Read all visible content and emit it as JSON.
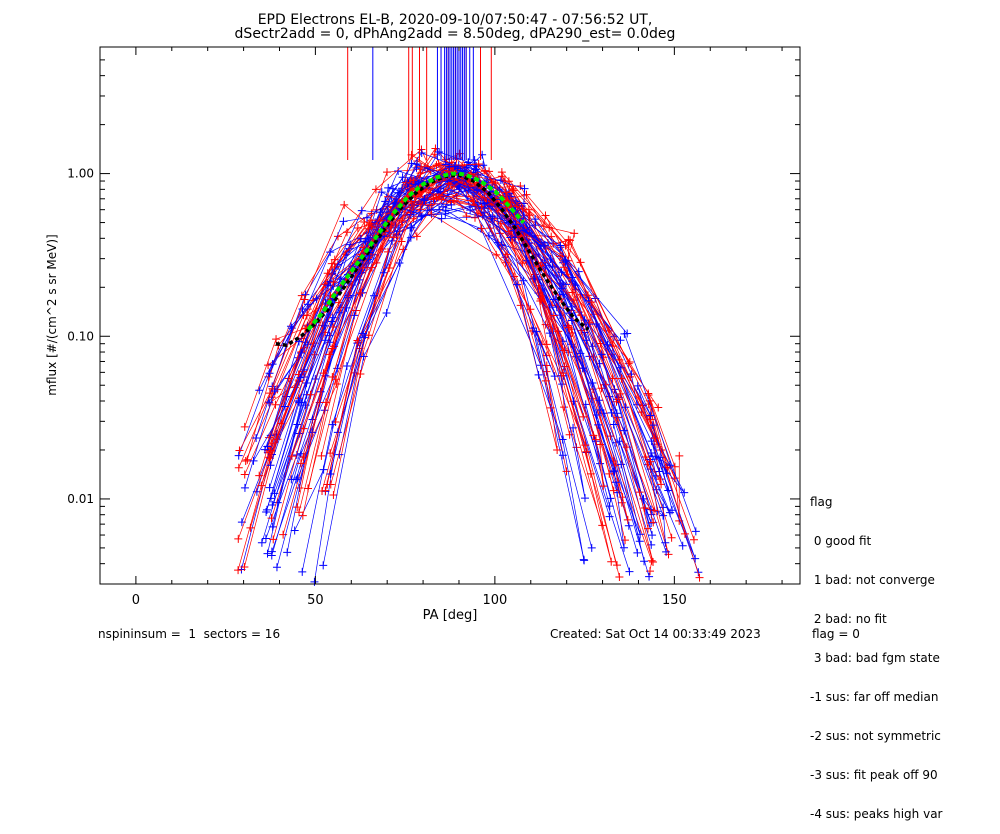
{
  "chart_data": {
    "type": "scatter",
    "title": "EPD Electrons EL-B, 2020-09-10/07:50:47 - 07:56:52 UT,",
    "subtitle": "dSectr2add = 0, dPhAng2add = 8.50deg, dPA290_est=    0.0deg",
    "xlabel": "PA [deg]",
    "ylabel": "mflux [#/(cm^2 s sr MeV)]",
    "xlim": [
      -10,
      185
    ],
    "ylim": [
      0.003,
      6
    ],
    "y_scale": "log",
    "x_ticks": [
      "0",
      "50",
      "100",
      "150"
    ],
    "x_tick_values": [
      0,
      50,
      100,
      150
    ],
    "y_ticks": [
      "0.01",
      "0.10",
      "1.00"
    ],
    "y_tick_values": [
      0.01,
      0.1,
      1.0
    ],
    "series_colors": [
      "#ff0000",
      "#0000ff"
    ],
    "spikes_red_x": [
      59,
      76,
      77,
      79,
      81,
      85,
      87,
      89,
      90,
      92,
      96,
      99
    ],
    "spikes_blue_x": [
      66,
      84,
      85,
      86,
      86.5,
      87,
      87.5,
      88,
      88.5,
      89,
      89.5,
      90,
      90.5,
      91,
      91.5,
      92,
      93,
      94
    ],
    "fit_curve_green": {
      "x": [
        48,
        52,
        56,
        60,
        64,
        68,
        72,
        76,
        80,
        84,
        88,
        90,
        92,
        96,
        100,
        104,
        108
      ],
      "y": [
        0.11,
        0.14,
        0.19,
        0.25,
        0.33,
        0.44,
        0.58,
        0.73,
        0.86,
        0.95,
        1.0,
        1.0,
        0.98,
        0.9,
        0.78,
        0.63,
        0.5
      ]
    },
    "fit_curve_black": {
      "x": [
        39,
        42,
        46,
        50,
        54,
        58,
        62,
        66,
        70,
        74,
        78,
        82,
        86,
        90,
        94,
        98,
        102,
        106,
        110,
        114,
        118,
        122,
        126
      ],
      "y": [
        0.09,
        0.088,
        0.1,
        0.12,
        0.15,
        0.2,
        0.27,
        0.36,
        0.48,
        0.62,
        0.76,
        0.88,
        0.96,
        0.98,
        0.9,
        0.77,
        0.6,
        0.45,
        0.32,
        0.23,
        0.17,
        0.13,
        0.11
      ]
    },
    "legend_title": "flag",
    "legend_entries": [
      " 0 good fit",
      " 1 bad: not converge",
      " 2 bad: no fit",
      " 3 bad: bad fgm state",
      "-1 sus: far off median",
      "-2 sus: not symmetric",
      "-3 sus: fit peak off 90",
      "-4 sus: peaks high var"
    ],
    "grid": false
  },
  "footer": {
    "left": "nspininsum =  1  sectors = 16",
    "center": "Created: Sat Oct 14 00:33:49 2023",
    "right": "flag = 0"
  }
}
